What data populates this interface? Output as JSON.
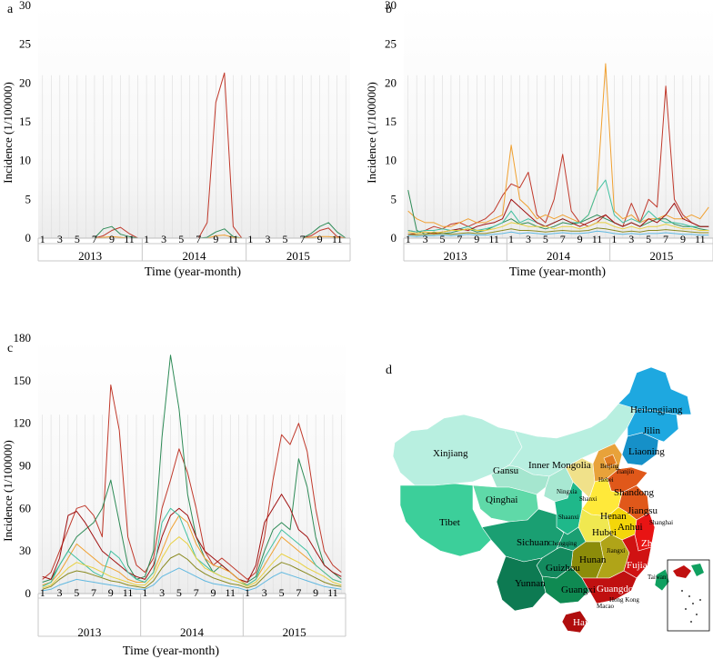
{
  "figure": {
    "panels": [
      {
        "id": "a",
        "label": "a",
        "ylabel": "Incidence (1/100000)",
        "xlabel": "Time (year-month)"
      },
      {
        "id": "b",
        "label": "b",
        "ylabel": "Incidence (1/100000)",
        "xlabel": "Time (year-month)"
      },
      {
        "id": "c",
        "label": "c",
        "ylabel": "Incidence (1/100000)",
        "xlabel": "Time (year-month)"
      }
    ],
    "map": {
      "label": "d",
      "province_labels": [
        "Heilongjiang",
        "Jilin",
        "Liaoning",
        "Xinjiang",
        "Gansu",
        "Inner Mongolia",
        "Beijing",
        "Tianjin",
        "Hebei",
        "Shandong",
        "Qinghai",
        "Ningxia",
        "Shanxi",
        "Tibet",
        "Henan",
        "Jiangsu",
        "Shaanxi",
        "Shanghai",
        "Hubei",
        "Anhui",
        "Sichuan",
        "Chongqing",
        "Zhejiang",
        "Hunan",
        "Jiangxi",
        "Guizhou",
        "Fujian",
        "Yunnan",
        "Guangxi",
        "Guangdong",
        "Taiwan",
        "Hong Kong",
        "Macao",
        "Hainan"
      ],
      "colors": {
        "heilongjiang_jilin": "#1ea8e0",
        "liaoning": "#1690c8",
        "northwest": "#b8efe0",
        "gansu": "#a5e6cf",
        "ningxia": "#a8e8d2",
        "tibet_sichuan_west": "#3ccf9a",
        "qinghai": "#5fd9a8",
        "shaanxi": "#1fb88a",
        "sichuan": "#1a9f72",
        "guizhou": "#138a5e",
        "yunnan": "#0d7a52",
        "guangxi": "#0f8a52",
        "hebei": "#e8a23a",
        "beijing": "#e07a1f",
        "shandong": "#e0581a",
        "henan": "#ffe93a",
        "shanxi": "#f0e18a",
        "jiangsu": "#e0581a",
        "anhui": "#f4d60a",
        "hubei": "#f0e850",
        "hunan": "#8c8c0a",
        "jiangxi": "#b0a418",
        "zhejiang": "#e81414",
        "fujian": "#d01212",
        "guangdong": "#c01010",
        "hainan": "#b00e0e",
        "taiwan": "#10a060"
      }
    },
    "colors": {
      "red": "#c0392b",
      "green": "#2e8b57",
      "orange": "#f0a030",
      "teal": "#40c0a0",
      "lightblue": "#60b8e0",
      "yellow": "#e8d040",
      "olive": "#8a8a20",
      "darkred": "#a01010"
    }
  },
  "chart_data": [
    {
      "type": "line",
      "panel": "a",
      "title": "a",
      "xlabel": "Time (year-month)",
      "ylabel": "Incidence (1/100000)",
      "ylim": [
        0,
        30
      ],
      "yticks": [
        0,
        5,
        10,
        15,
        20,
        25,
        30
      ],
      "month_tick_labels": [
        "1",
        "3",
        "5",
        "7",
        "9",
        "11",
        "1",
        "3",
        "5",
        "7",
        "9",
        "11",
        "1",
        "3",
        "5",
        "7",
        "9",
        "11"
      ],
      "years": [
        "2013",
        "2014",
        "2015"
      ],
      "series": [
        {
          "name": "red",
          "color": "#c0392b",
          "values": [
            0,
            0,
            0,
            0,
            0,
            0,
            0,
            0.3,
            1.0,
            1.4,
            0.6,
            0,
            0,
            0,
            0,
            0,
            0,
            0,
            0,
            2.0,
            17.5,
            21.3,
            1.5,
            0,
            0,
            0,
            0,
            0,
            0,
            0,
            0,
            0.3,
            1.0,
            1.3,
            0.2,
            0
          ]
        },
        {
          "name": "green",
          "color": "#2e8b57",
          "values": [
            0,
            0,
            0,
            0,
            0,
            0,
            0,
            1.2,
            1.5,
            0.5,
            0.2,
            0,
            0,
            0,
            0,
            0,
            0,
            0,
            0,
            0.1,
            0.8,
            1.2,
            0.2,
            0,
            0,
            0,
            0,
            0,
            0,
            0,
            0,
            0.6,
            1.5,
            2.0,
            0.8,
            0
          ]
        },
        {
          "name": "orange",
          "color": "#f0a030",
          "values": [
            0,
            0,
            0,
            0,
            0,
            0,
            0,
            0.1,
            0.2,
            0.1,
            0,
            0,
            0,
            0,
            0,
            0,
            0,
            0,
            0,
            0,
            0.3,
            0.4,
            0.1,
            0,
            0,
            0,
            0,
            0,
            0,
            0,
            0,
            0.1,
            0.2,
            0.2,
            0.1,
            0
          ]
        }
      ]
    },
    {
      "type": "line",
      "panel": "b",
      "title": "b",
      "xlabel": "Time (year-month)",
      "ylabel": "Incidence (1/100000)",
      "ylim": [
        0,
        30
      ],
      "yticks": [
        0,
        5,
        10,
        15,
        20,
        25,
        30
      ],
      "month_tick_labels": [
        "1",
        "3",
        "5",
        "7",
        "9",
        "11",
        "1",
        "3",
        "5",
        "7",
        "9",
        "11",
        "1",
        "3",
        "5",
        "7",
        "9",
        "11"
      ],
      "years": [
        "2013",
        "2014",
        "2015"
      ],
      "series": [
        {
          "name": "red-1",
          "color": "#c0392b",
          "values": [
            1.0,
            0.8,
            1.0,
            1.5,
            1.2,
            1.8,
            2.0,
            1.5,
            2.0,
            2.5,
            3.5,
            5.5,
            7.0,
            6.5,
            8.5,
            3.0,
            2.0,
            5.0,
            10.8,
            3.5,
            2.0,
            1.5,
            2.0,
            3.0,
            2.0,
            1.5,
            4.5,
            2.0,
            5.0,
            4.0,
            19.6,
            5.0,
            3.0,
            2.0,
            1.5,
            1.5
          ]
        },
        {
          "name": "orange-1",
          "color": "#f0a030",
          "values": [
            3.5,
            2.5,
            2.0,
            2.0,
            1.5,
            1.5,
            2.0,
            2.5,
            2.0,
            2.0,
            2.5,
            3.0,
            12.0,
            5.0,
            4.0,
            2.5,
            3.0,
            2.5,
            3.0,
            2.5,
            2.0,
            3.0,
            6.0,
            22.5,
            3.5,
            2.5,
            3.0,
            2.0,
            2.5,
            2.5,
            3.0,
            2.5,
            2.5,
            3.0,
            2.5,
            4.0
          ]
        },
        {
          "name": "green-1",
          "color": "#2e8b57",
          "values": [
            6.2,
            1.0,
            0.5,
            0.8,
            0.6,
            0.7,
            1.0,
            1.2,
            0.8,
            1.0,
            1.5,
            2.0,
            2.5,
            1.8,
            2.0,
            1.5,
            1.2,
            1.5,
            2.0,
            1.8,
            2.0,
            2.5,
            3.0,
            2.5,
            2.0,
            1.5,
            2.0,
            1.5,
            2.0,
            2.5,
            2.5,
            1.8,
            1.5,
            1.5,
            1.2,
            1.0
          ]
        },
        {
          "name": "teal-1",
          "color": "#40c0a0",
          "values": [
            1.0,
            0.8,
            1.0,
            1.0,
            1.2,
            1.0,
            1.2,
            1.5,
            1.0,
            1.2,
            1.5,
            2.0,
            3.5,
            2.0,
            2.5,
            2.0,
            1.5,
            2.0,
            2.5,
            2.0,
            2.0,
            3.0,
            6.0,
            7.5,
            3.0,
            2.0,
            2.5,
            2.0,
            3.5,
            2.5,
            2.0,
            2.0,
            1.8,
            1.5,
            1.5,
            1.5
          ]
        },
        {
          "name": "red-2",
          "color": "#a01010",
          "values": [
            0.5,
            0.6,
            0.8,
            0.6,
            0.8,
            1.0,
            1.2,
            1.0,
            1.5,
            1.8,
            2.0,
            2.5,
            5.0,
            4.0,
            3.0,
            2.0,
            1.5,
            2.0,
            2.5,
            2.0,
            1.5,
            2.0,
            2.5,
            3.0,
            2.0,
            1.5,
            2.0,
            1.5,
            2.5,
            2.0,
            3.0,
            4.5,
            2.5,
            2.0,
            1.5,
            1.5
          ]
        },
        {
          "name": "yellow-1",
          "color": "#e8d040",
          "values": [
            0.8,
            0.6,
            0.8,
            0.7,
            0.8,
            1.0,
            1.0,
            1.2,
            1.0,
            1.0,
            1.2,
            1.5,
            2.0,
            1.8,
            1.5,
            1.5,
            1.5,
            1.2,
            1.5,
            1.5,
            1.2,
            1.5,
            2.0,
            2.0,
            1.5,
            1.2,
            1.5,
            1.2,
            1.5,
            1.5,
            1.8,
            1.5,
            1.2,
            1.2,
            1.0,
            1.0
          ]
        },
        {
          "name": "lightblue-1",
          "color": "#60b8e0",
          "values": [
            0.3,
            0.2,
            0.3,
            0.3,
            0.4,
            0.3,
            0.4,
            0.5,
            0.4,
            0.4,
            0.5,
            0.6,
            0.8,
            0.6,
            0.7,
            0.6,
            0.5,
            0.6,
            0.7,
            0.6,
            0.6,
            0.7,
            0.9,
            0.8,
            0.6,
            0.5,
            0.6,
            0.5,
            0.6,
            0.6,
            0.7,
            0.6,
            0.5,
            0.5,
            0.4,
            0.4
          ]
        },
        {
          "name": "olive-1",
          "color": "#8a8a20",
          "values": [
            0.5,
            0.4,
            0.5,
            0.5,
            0.6,
            0.5,
            0.6,
            0.7,
            0.6,
            0.6,
            0.8,
            1.0,
            1.2,
            1.0,
            1.0,
            0.9,
            0.8,
            0.9,
            1.0,
            0.9,
            0.9,
            1.0,
            1.3,
            1.2,
            1.0,
            0.8,
            0.9,
            0.8,
            1.0,
            1.0,
            1.1,
            1.0,
            0.9,
            0.8,
            0.7,
            0.7
          ]
        }
      ]
    },
    {
      "type": "line",
      "panel": "c",
      "title": "c",
      "xlabel": "Time (year-month)",
      "ylabel": "Incidence (1/100000)",
      "ylim": [
        0,
        180
      ],
      "yticks": [
        0,
        30,
        60,
        90,
        120,
        150,
        180
      ],
      "month_tick_labels": [
        "1",
        "3",
        "5",
        "7",
        "9",
        "11",
        "1",
        "3",
        "5",
        "7",
        "9",
        "11",
        "1",
        "3",
        "5",
        "7",
        "9",
        "11"
      ],
      "years": [
        "2013",
        "2014",
        "2015"
      ],
      "series": [
        {
          "name": "red-1",
          "color": "#c0392b",
          "values": [
            10,
            15,
            30,
            45,
            60,
            62,
            55,
            40,
            147,
            115,
            40,
            20,
            15,
            25,
            60,
            80,
            102,
            85,
            60,
            30,
            20,
            25,
            20,
            15,
            10,
            15,
            40,
            80,
            112,
            105,
            120,
            100,
            60,
            30,
            20,
            15
          ]
        },
        {
          "name": "green-1",
          "color": "#2e8b57",
          "values": [
            8,
            10,
            20,
            30,
            40,
            45,
            50,
            60,
            80,
            50,
            20,
            10,
            12,
            30,
            110,
            168,
            130,
            70,
            40,
            25,
            15,
            20,
            15,
            10,
            8,
            12,
            30,
            45,
            50,
            45,
            95,
            75,
            40,
            20,
            15,
            10
          ]
        },
        {
          "name": "red-2",
          "color": "#a01010",
          "values": [
            12,
            10,
            25,
            55,
            58,
            50,
            40,
            30,
            25,
            20,
            15,
            12,
            10,
            20,
            40,
            55,
            60,
            55,
            40,
            30,
            25,
            20,
            15,
            10,
            8,
            20,
            50,
            60,
            70,
            60,
            45,
            40,
            30,
            20,
            15,
            12
          ]
        },
        {
          "name": "orange-1",
          "color": "#f0a030",
          "values": [
            6,
            8,
            15,
            25,
            35,
            30,
            25,
            20,
            18,
            15,
            10,
            8,
            8,
            15,
            30,
            45,
            55,
            50,
            35,
            25,
            20,
            18,
            15,
            10,
            6,
            10,
            20,
            30,
            40,
            35,
            30,
            25,
            20,
            15,
            10,
            8
          ]
        },
        {
          "name": "teal-1",
          "color": "#40c0a0",
          "values": [
            5,
            8,
            20,
            30,
            25,
            20,
            15,
            12,
            30,
            25,
            15,
            10,
            8,
            15,
            50,
            60,
            55,
            40,
            25,
            20,
            15,
            12,
            10,
            8,
            6,
            10,
            25,
            35,
            45,
            40,
            35,
            30,
            20,
            15,
            10,
            8
          ]
        },
        {
          "name": "yellow-1",
          "color": "#e8d040",
          "values": [
            4,
            6,
            12,
            18,
            22,
            20,
            18,
            15,
            12,
            10,
            8,
            6,
            6,
            12,
            25,
            35,
            40,
            35,
            25,
            18,
            15,
            12,
            10,
            8,
            5,
            8,
            15,
            22,
            28,
            25,
            22,
            18,
            15,
            12,
            8,
            6
          ]
        },
        {
          "name": "lightblue-1",
          "color": "#60b8e0",
          "values": [
            2,
            3,
            6,
            8,
            10,
            9,
            8,
            7,
            6,
            5,
            4,
            3,
            3,
            6,
            12,
            15,
            18,
            15,
            12,
            9,
            7,
            6,
            5,
            4,
            2,
            4,
            8,
            12,
            15,
            13,
            11,
            9,
            7,
            5,
            4,
            3
          ]
        },
        {
          "name": "olive-1",
          "color": "#8a8a20",
          "values": [
            3,
            5,
            10,
            14,
            16,
            15,
            13,
            11,
            9,
            8,
            6,
            5,
            4,
            9,
            18,
            25,
            28,
            24,
            18,
            14,
            11,
            9,
            7,
            6,
            4,
            6,
            12,
            18,
            22,
            20,
            17,
            14,
            11,
            8,
            6,
            5
          ]
        }
      ]
    }
  ]
}
